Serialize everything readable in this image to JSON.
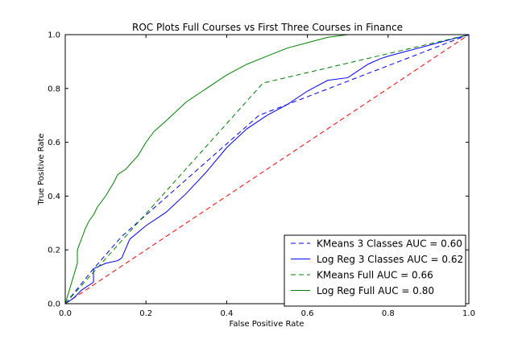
{
  "chart_data": {
    "type": "line",
    "title": "ROC Plots Full Courses vs First Three Courses in Finance",
    "xlabel": "False Positive Rate",
    "ylabel": "True Positive Rate",
    "xlim": [
      0,
      1
    ],
    "ylim": [
      0,
      1
    ],
    "xticks": [
      "0.0",
      "0.2",
      "0.4",
      "0.6",
      "0.8",
      "1.0"
    ],
    "yticks": [
      "0.0",
      "0.2",
      "0.4",
      "0.6",
      "0.8",
      "1.0"
    ],
    "grid": false,
    "legend_position": "bottom-right",
    "baseline": {
      "color": "#ff0000",
      "dash": true,
      "x": [
        0,
        1
      ],
      "y": [
        0,
        1
      ]
    },
    "series": [
      {
        "name": "KMeans 3 Classes AUC = 0.60",
        "color": "#0000ff",
        "dash": true,
        "x": [
          0,
          0.07,
          0.14,
          0.48,
          1.0
        ],
        "y": [
          0,
          0.13,
          0.25,
          0.7,
          1.0
        ]
      },
      {
        "name": "Log Reg 3 Classes AUC = 0.62",
        "color": "#0000ff",
        "dash": false,
        "x": [
          0,
          0.02,
          0.04,
          0.07,
          0.07,
          0.1,
          0.13,
          0.14,
          0.16,
          0.2,
          0.25,
          0.3,
          0.35,
          0.4,
          0.45,
          0.5,
          0.55,
          0.6,
          0.65,
          0.7,
          0.75,
          0.78,
          0.8,
          0.85,
          0.9,
          0.95,
          1.0
        ],
        "y": [
          0,
          0.02,
          0.05,
          0.08,
          0.13,
          0.15,
          0.16,
          0.17,
          0.24,
          0.29,
          0.34,
          0.41,
          0.49,
          0.58,
          0.65,
          0.7,
          0.74,
          0.79,
          0.83,
          0.84,
          0.89,
          0.91,
          0.92,
          0.94,
          0.96,
          0.98,
          1.0
        ]
      },
      {
        "name": "KMeans Full AUC = 0.66",
        "color": "#008000",
        "dash": true,
        "x": [
          0,
          0.49,
          1.0
        ],
        "y": [
          0,
          0.82,
          1.0
        ]
      },
      {
        "name": "Log Reg Full AUC = 0.80",
        "color": "#008000",
        "dash": false,
        "x": [
          0,
          0.01,
          0.02,
          0.03,
          0.03,
          0.04,
          0.05,
          0.06,
          0.07,
          0.08,
          0.1,
          0.12,
          0.13,
          0.15,
          0.18,
          0.2,
          0.22,
          0.25,
          0.3,
          0.35,
          0.4,
          0.45,
          0.5,
          0.55,
          0.6,
          0.65,
          0.7,
          0.75,
          0.77,
          0.8,
          0.85,
          0.9,
          0.95,
          1.0
        ],
        "y": [
          0,
          0.05,
          0.1,
          0.15,
          0.2,
          0.24,
          0.28,
          0.31,
          0.33,
          0.36,
          0.4,
          0.45,
          0.48,
          0.5,
          0.55,
          0.6,
          0.64,
          0.68,
          0.75,
          0.8,
          0.85,
          0.89,
          0.92,
          0.95,
          0.97,
          0.99,
          1.0,
          1.0,
          1.0,
          1.0,
          1.0,
          1.0,
          1.0,
          1.0
        ]
      }
    ]
  }
}
